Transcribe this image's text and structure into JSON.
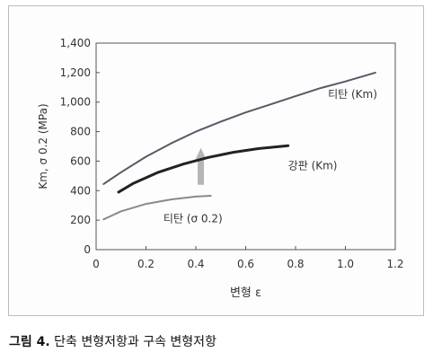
{
  "caption": {
    "figure_label": "그림 4.",
    "text": " 단축 변형저항과 구속 변형저항"
  },
  "chart_data": {
    "type": "line",
    "xlabel": "변형 ε",
    "ylabel": "Km, σ 0.2 (MPa)",
    "xlim": [
      0,
      1.2
    ],
    "ylim": [
      0,
      1400
    ],
    "xticks": [
      0,
      0.2,
      0.4,
      0.6,
      0.8,
      1.0,
      1.2
    ],
    "xtick_labels": [
      "0",
      "0.2",
      "0.4",
      "0.6",
      "0.8",
      "1.0",
      "1.2"
    ],
    "yticks": [
      0,
      200,
      400,
      600,
      800,
      1000,
      1200,
      1400
    ],
    "ytick_labels": [
      "0",
      "200",
      "400",
      "600",
      "800",
      "1,000",
      "1,200",
      "1,400"
    ],
    "grid": false,
    "series": [
      {
        "name": "티탄 (Km)",
        "color": "#555a66",
        "x": [
          0.03,
          0.1,
          0.2,
          0.3,
          0.4,
          0.5,
          0.6,
          0.7,
          0.8,
          0.9,
          1.0,
          1.12
        ],
        "y": [
          445,
          525,
          630,
          720,
          800,
          868,
          930,
          985,
          1040,
          1095,
          1140,
          1200
        ]
      },
      {
        "name": "강판 (Km)",
        "color": "#222222",
        "x": [
          0.09,
          0.15,
          0.25,
          0.35,
          0.45,
          0.55,
          0.65,
          0.77
        ],
        "y": [
          390,
          450,
          525,
          580,
          625,
          660,
          685,
          705
        ]
      },
      {
        "name": "티탄 (σ 0.2)",
        "color": "#8a8a8a",
        "x": [
          0.03,
          0.1,
          0.2,
          0.3,
          0.4,
          0.46
        ],
        "y": [
          205,
          260,
          310,
          340,
          360,
          365
        ]
      }
    ],
    "annotations": [
      {
        "type": "arrow",
        "direction": "up",
        "x": 0.42,
        "y_from": 440,
        "y_to": 690,
        "color": "#b5b5b5"
      }
    ]
  }
}
